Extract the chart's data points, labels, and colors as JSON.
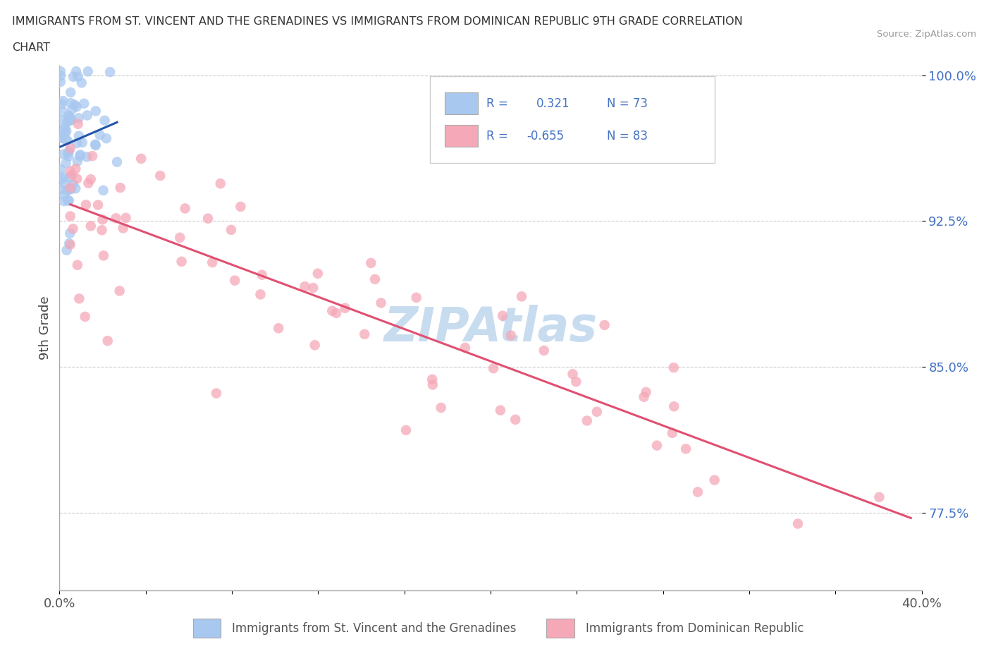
{
  "title_line1": "IMMIGRANTS FROM ST. VINCENT AND THE GRENADINES VS IMMIGRANTS FROM DOMINICAN REPUBLIC 9TH GRADE CORRELATION",
  "title_line2": "CHART",
  "source": "Source: ZipAtlas.com",
  "ylabel": "9th Grade",
  "xlim": [
    0.0,
    0.4
  ],
  "ylim": [
    0.735,
    1.005
  ],
  "xtick_vals": [
    0.0,
    0.04,
    0.08,
    0.12,
    0.16,
    0.2,
    0.24,
    0.28,
    0.32,
    0.36,
    0.4
  ],
  "xtick_labels_show": [
    "0.0%",
    "",
    "",
    "",
    "",
    "",
    "",
    "",
    "",
    "",
    "40.0%"
  ],
  "ytick_labels": [
    "100.0%",
    "92.5%",
    "85.0%",
    "77.5%"
  ],
  "ytick_vals": [
    1.0,
    0.925,
    0.85,
    0.775
  ],
  "R_blue": 0.321,
  "N_blue": 73,
  "R_pink": -0.655,
  "N_pink": 83,
  "blue_color": "#A8C8F0",
  "pink_color": "#F5A8B8",
  "blue_line_color": "#2255AA",
  "pink_line_color": "#E05070",
  "legend_text_color": "#4472C4",
  "watermark_color": "#C8DCF0",
  "background_color": "#FFFFFF"
}
